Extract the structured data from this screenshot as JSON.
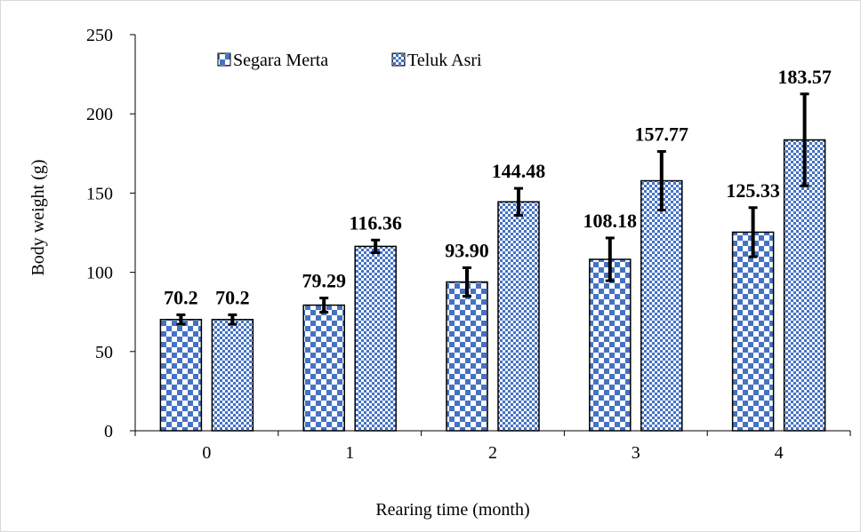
{
  "chart_data": {
    "type": "bar",
    "categories": [
      "0",
      "1",
      "2",
      "3",
      "4"
    ],
    "series": [
      {
        "name": "Segara Merta",
        "values": [
          70.2,
          79.29,
          93.9,
          108.18,
          125.33
        ],
        "labels": [
          "70.2",
          "79.29",
          "93.90",
          "108.18",
          "125.33"
        ],
        "error": [
          3,
          4.5,
          9,
          13.5,
          15.5
        ],
        "pattern": "checker-large",
        "color": "#4472c4"
      },
      {
        "name": "Teluk Asri",
        "values": [
          70.2,
          116.36,
          144.48,
          157.77,
          183.57
        ],
        "labels": [
          "70.2",
          "116.36",
          "144.48",
          "157.77",
          "183.57"
        ],
        "error": [
          3,
          4,
          8.5,
          18.5,
          29
        ],
        "pattern": "checker-small",
        "color": "#4472c4"
      }
    ],
    "xlabel": "Rearing time (month)",
    "ylabel": "Body weight (g)",
    "ylim": [
      0,
      250
    ],
    "yticks": [
      0,
      50,
      100,
      150,
      200,
      250
    ],
    "grid": false,
    "legend_position": "top-left"
  }
}
